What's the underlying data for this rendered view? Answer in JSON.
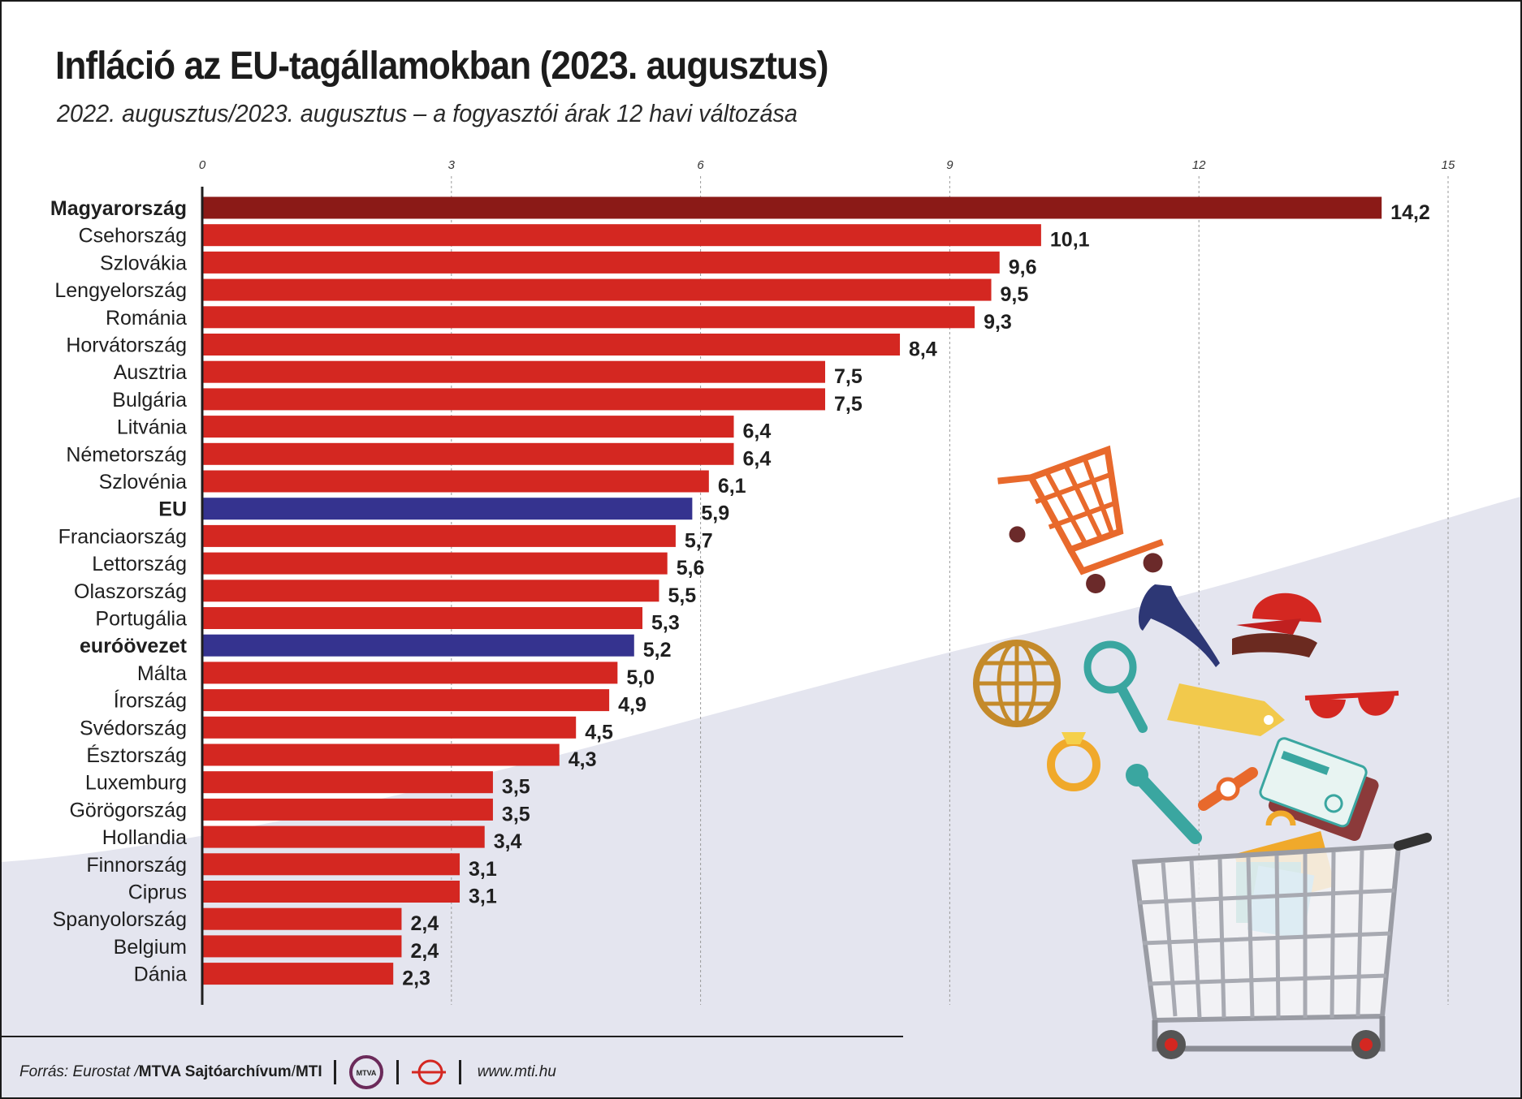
{
  "header": {
    "title": "Infláció az EU-tagállamokban (2023. augusztus)",
    "subtitle": "2022. augusztus/2023. augusztus – a fogyasztói árak 12 havi változása"
  },
  "colors": {
    "highlight": "#8b1a17",
    "country": "#d42721",
    "aggregate": "#35338f",
    "background_wave": "#e4e5ef"
  },
  "chart_data": {
    "type": "bar",
    "orientation": "horizontal",
    "title": "Infláció az EU-tagállamokban (2023. augusztus)",
    "xlabel": "",
    "ylabel": "",
    "xlim": [
      0,
      15
    ],
    "ticks": [
      "0",
      "3",
      "6",
      "9",
      "12",
      "15"
    ],
    "tick_values": [
      0,
      3,
      6,
      9,
      12,
      15
    ],
    "categories": [
      "Magyarország",
      "Csehország",
      "Szlovákia",
      "Lengyelország",
      "Románia",
      "Horvátország",
      "Ausztria",
      "Bulgária",
      "Litvánia",
      "Németország",
      "Szlovénia",
      "EU",
      "Franciaország",
      "Lettország",
      "Olaszország",
      "Portugália",
      "euróövezet",
      "Málta",
      "Írország",
      "Svédország",
      "Észtország",
      "Luxemburg",
      "Görögország",
      "Hollandia",
      "Finnország",
      "Ciprus",
      "Spanyolország",
      "Belgium",
      "Dánia"
    ],
    "values": [
      14.2,
      10.1,
      9.6,
      9.5,
      9.3,
      8.4,
      7.5,
      7.5,
      6.4,
      6.4,
      6.1,
      5.9,
      5.7,
      5.6,
      5.5,
      5.3,
      5.2,
      5.0,
      4.9,
      4.5,
      4.3,
      3.5,
      3.5,
      3.4,
      3.1,
      3.1,
      2.4,
      2.4,
      2.3
    ],
    "value_labels": [
      "14,2",
      "10,1",
      "9,6",
      "9,5",
      "9,3",
      "8,4",
      "7,5",
      "7,5",
      "6,4",
      "6,4",
      "6,1",
      "5,9",
      "5,7",
      "5,6",
      "5,5",
      "5,3",
      "5,2",
      "5,0",
      "4,9",
      "4,5",
      "4,3",
      "3,5",
      "3,5",
      "3,4",
      "3,1",
      "3,1",
      "2,4",
      "2,4",
      "2,3"
    ],
    "kinds": [
      "highlight",
      "country",
      "country",
      "country",
      "country",
      "country",
      "country",
      "country",
      "country",
      "country",
      "country",
      "aggregate",
      "country",
      "country",
      "country",
      "country",
      "aggregate",
      "country",
      "country",
      "country",
      "country",
      "country",
      "country",
      "country",
      "country",
      "country",
      "country",
      "country",
      "country"
    ],
    "bold_labels": [
      "Magyarország",
      "EU",
      "euróövezet"
    ],
    "grid": true
  },
  "footer": {
    "source_prefix": "Forrás: Eurostat / ",
    "source_bold": "MTVA Sajtóarchívum",
    "source_sep": " / ",
    "source_agency": "MTI",
    "logo_text": "MTVA",
    "url": "www.mti.hu"
  }
}
